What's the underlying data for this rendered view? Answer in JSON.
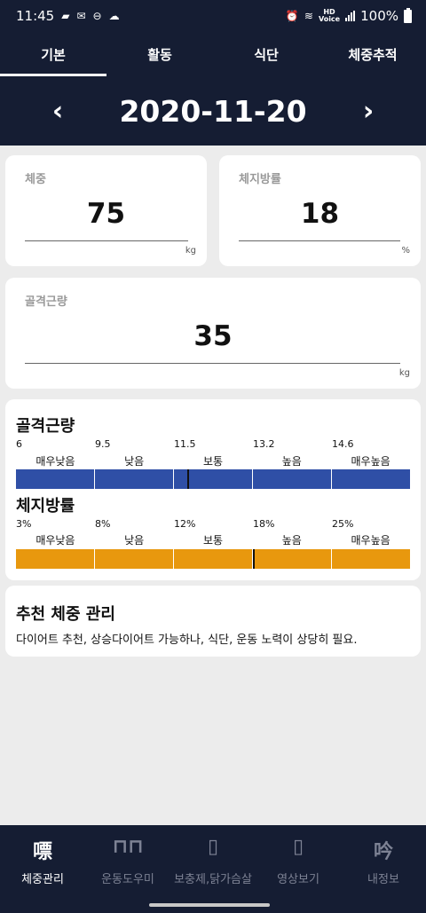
{
  "status_bar": {
    "time": "11:45",
    "battery": "100%",
    "left_icons": [
      "message-icon",
      "mail-icon",
      "dnd-icon",
      "cloud-icon"
    ],
    "right_icons": [
      "alarm-icon",
      "wifi-icon",
      "hd-voice-icon",
      "signal-icon",
      "battery-icon"
    ],
    "hd_label": "HD",
    "voice_label": "Voice"
  },
  "tabs": [
    {
      "label": "기본",
      "active": true
    },
    {
      "label": "활동",
      "active": false
    },
    {
      "label": "식단",
      "active": false
    },
    {
      "label": "체중추적",
      "active": false
    }
  ],
  "date": {
    "value": "2020-11-20",
    "prev_icon": "chevron-left-icon",
    "next_icon": "chevron-right-icon",
    "prev_glyph": "‹",
    "next_glyph": "›"
  },
  "weight": {
    "label": "체중",
    "value": "75",
    "unit": "kg"
  },
  "body_fat": {
    "label": "체지방률",
    "value": "18",
    "unit": "%"
  },
  "muscle": {
    "label": "골격근량",
    "value": "35",
    "unit": "kg"
  },
  "levels": {
    "categories": [
      "매우낮음",
      "낮음",
      "보통",
      "높음",
      "매우높음"
    ],
    "muscle": {
      "title": "골격근량",
      "ticks": [
        "6",
        "9.5",
        "11.5",
        "13.2",
        "14.6"
      ],
      "color": "#2f4fa6",
      "marker_fraction": 0.438
    },
    "fat": {
      "title": "체지방률",
      "ticks": [
        "3%",
        "8%",
        "12%",
        "18%",
        "25%"
      ],
      "color": "#e8980e",
      "marker_fraction": 0.603
    }
  },
  "recommendation": {
    "title": "추천 체중 관리",
    "text": "다이어트 추천, 상승다이어트 가능하나, 식단, 운동 노력이 상당히 필요."
  },
  "bottom_nav": [
    {
      "label": "체중관리",
      "icon": "scale-icon",
      "glyph": "嘌",
      "active": true
    },
    {
      "label": "운동도우미",
      "icon": "exercise-icon",
      "glyph": "⊓⊓",
      "active": false
    },
    {
      "label": "보충제,닭가슴살",
      "icon": "supplement-icon",
      "glyph": "▯",
      "active": false
    },
    {
      "label": "영상보기",
      "icon": "video-icon",
      "glyph": "▯",
      "active": false
    },
    {
      "label": "내정보",
      "icon": "profile-icon",
      "glyph": "吟",
      "active": false
    }
  ]
}
